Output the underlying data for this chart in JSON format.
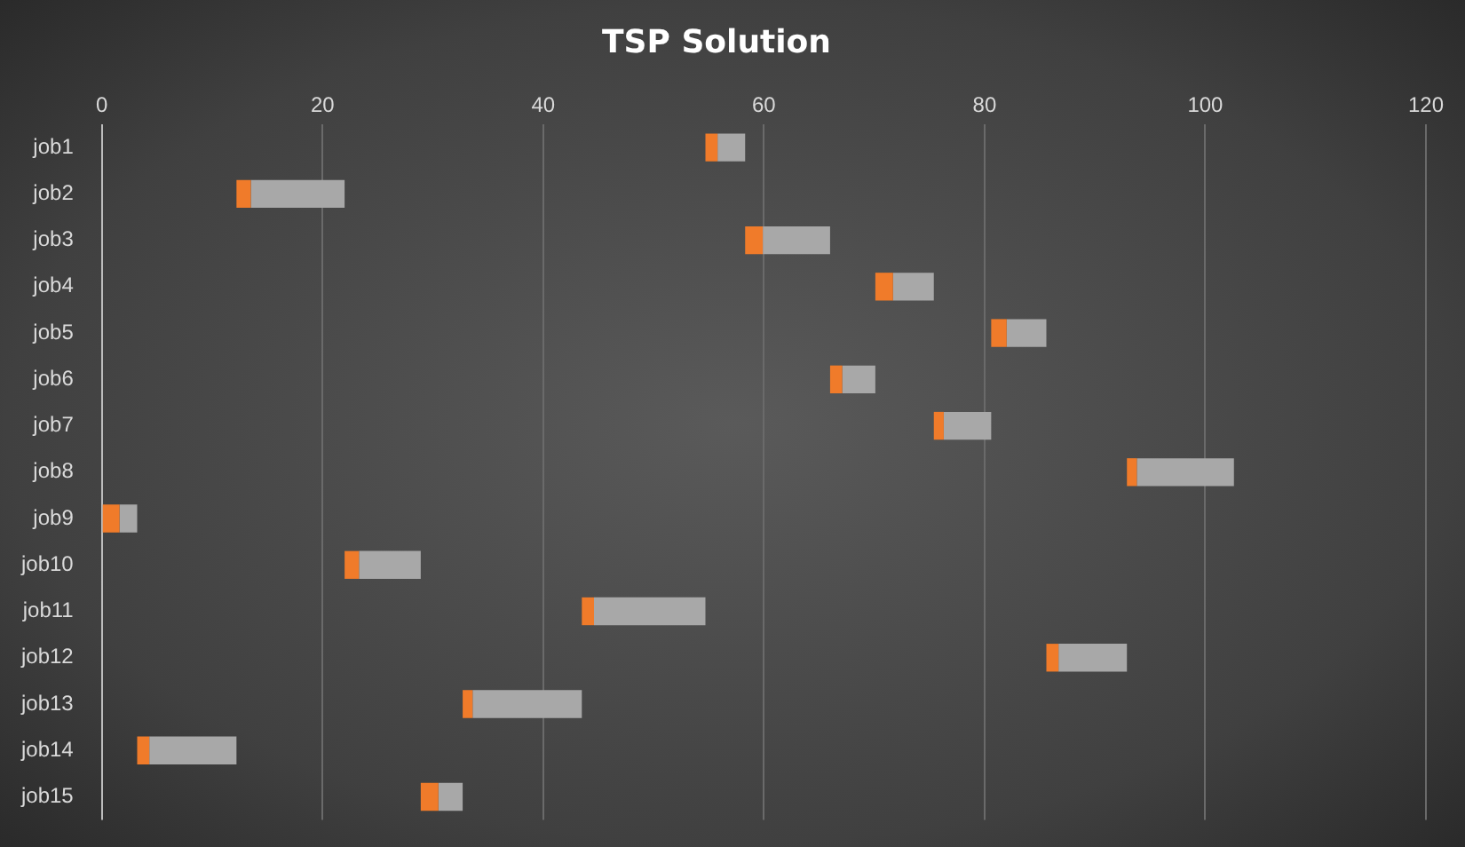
{
  "chart_data": {
    "type": "bar",
    "title": "TSP Solution",
    "orientation": "horizontal",
    "categories": [
      "job1",
      "job2",
      "job3",
      "job4",
      "job5",
      "job6",
      "job7",
      "job8",
      "job9",
      "job10",
      "job11",
      "job12",
      "job13",
      "job14",
      "job15"
    ],
    "series": [
      {
        "color": "#f07b2a",
        "base": [
          54.7,
          12.2,
          58.3,
          70.1,
          80.6,
          66.0,
          75.4,
          92.9,
          0,
          22.0,
          43.5,
          85.6,
          32.7,
          3.2,
          28.9
        ],
        "values": [
          1.1,
          1.3,
          1.6,
          1.6,
          1.4,
          1.1,
          0.9,
          0.9,
          1.6,
          1.3,
          1.1,
          1.1,
          0.9,
          1.1,
          1.6
        ]
      },
      {
        "color": "#a8a8a8",
        "base": [
          55.8,
          13.5,
          59.9,
          71.7,
          82.0,
          67.1,
          76.3,
          93.8,
          1.6,
          23.3,
          44.6,
          86.7,
          33.6,
          4.3,
          30.5
        ],
        "values": [
          2.5,
          8.5,
          6.1,
          3.7,
          3.6,
          3.0,
          4.3,
          8.8,
          1.6,
          5.6,
          10.1,
          6.2,
          9.9,
          7.9,
          2.2
        ]
      }
    ],
    "xlim": [
      0,
      120
    ],
    "xticks": [
      0,
      20,
      40,
      60,
      80,
      100,
      120
    ],
    "grid": "x",
    "legend": false
  }
}
